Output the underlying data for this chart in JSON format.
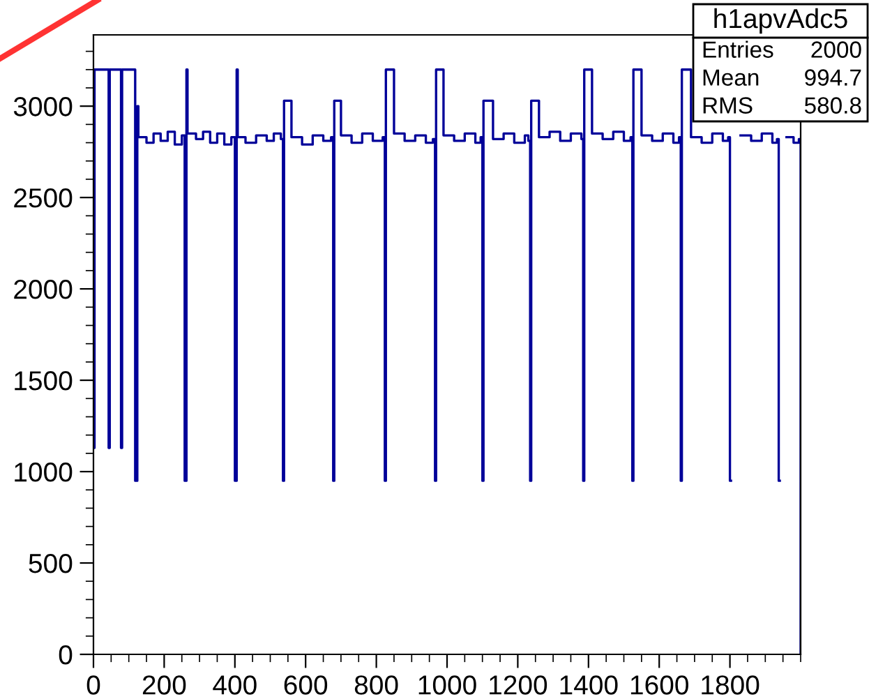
{
  "chart_data": {
    "type": "step",
    "x": [
      0,
      3,
      43,
      46,
      78,
      81,
      118,
      124,
      127,
      150,
      170,
      190,
      210,
      230,
      250,
      258,
      263,
      266,
      290,
      310,
      330,
      350,
      370,
      390,
      400,
      405,
      408,
      430,
      460,
      490,
      510,
      530,
      536,
      539,
      560,
      590,
      620,
      650,
      672,
      678,
      681,
      700,
      730,
      760,
      790,
      818,
      824,
      827,
      850,
      880,
      910,
      940,
      960,
      966,
      969,
      990,
      1020,
      1050,
      1080,
      1095,
      1100,
      1103,
      1130,
      1160,
      1190,
      1220,
      1230,
      1235,
      1238,
      1260,
      1290,
      1320,
      1350,
      1380,
      1385,
      1388,
      1410,
      1440,
      1470,
      1500,
      1519,
      1524,
      1527,
      1550,
      1580,
      1610,
      1640,
      1656,
      1661,
      1664,
      1690,
      1720,
      1750,
      1780,
      1795,
      1800,
      1803,
      1830,
      1860,
      1890,
      1920,
      1933,
      1938,
      1941,
      1960,
      1980,
      1995,
      2000
    ],
    "values": [
      1130,
      3200,
      1130,
      3200,
      1130,
      3200,
      950,
      3000,
      2830,
      2800,
      2850,
      2810,
      2860,
      2790,
      2840,
      950,
      3200,
      2850,
      2820,
      2860,
      2800,
      2850,
      2790,
      2830,
      950,
      3200,
      2830,
      2800,
      2840,
      2810,
      2850,
      2820,
      950,
      3030,
      2830,
      2790,
      2840,
      2810,
      2830,
      950,
      3030,
      2840,
      2800,
      2850,
      2810,
      2830,
      950,
      3200,
      2850,
      2810,
      2840,
      2800,
      2820,
      950,
      3200,
      2840,
      2810,
      2850,
      2800,
      2830,
      950,
      3030,
      2820,
      2850,
      2800,
      2840,
      2810,
      950,
      3030,
      2830,
      2860,
      2810,
      2850,
      2820,
      950,
      3200,
      2850,
      2820,
      2860,
      2810,
      2830,
      950,
      3200,
      2840,
      2810,
      2850,
      2800,
      2830,
      950,
      3200,
      2830,
      2800,
      2850,
      2810,
      2830,
      950,
      null,
      2840,
      2810,
      2850,
      2800,
      2820,
      950,
      null,
      2830,
      2800,
      2820,
      0
    ],
    "color": "#000099",
    "xlim": [
      0,
      2000
    ],
    "ylim": [
      0,
      3390
    ],
    "xticks": [
      0,
      200,
      400,
      600,
      800,
      1000,
      1200,
      1400,
      1600,
      1800
    ],
    "yticks": [
      0,
      500,
      1000,
      1500,
      2000,
      2500,
      3000
    ],
    "grid": false,
    "annotations": [
      "h1apvAdc5",
      "Entries",
      "2000",
      "Mean",
      "994.7",
      "RMS",
      "580.8"
    ]
  }
}
